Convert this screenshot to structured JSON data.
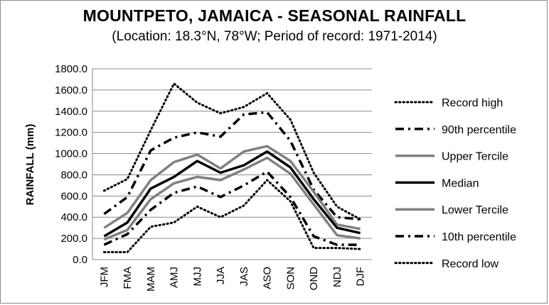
{
  "chart_data": {
    "type": "line",
    "title": "MOUNTPETO, JAMAICA - SEASONAL RAINFALL",
    "subtitle": "(Location: 18.3°N, 78°W; Period of record: 1971-2014)",
    "xlabel": "",
    "ylabel": "RAINFALL (mm)",
    "ylim": [
      0,
      1800
    ],
    "ytick_step": 200,
    "ytick_format": "0.0",
    "grid": "horizontal",
    "legend": "right",
    "categories": [
      "JFM",
      "FMA",
      "MAM",
      "AMJ",
      "MJJ",
      "JJA",
      "JAS",
      "ASO",
      "SON",
      "OND",
      "NDJ",
      "DJF"
    ],
    "series": [
      {
        "name": "Record high",
        "style": "dotted",
        "color": "#000000",
        "values": [
          650,
          760,
          1220,
          1660,
          1480,
          1380,
          1440,
          1570,
          1320,
          820,
          500,
          380
        ]
      },
      {
        "name": "90th percentile",
        "style": "dashdot",
        "color": "#000000",
        "values": [
          430,
          590,
          1030,
          1150,
          1200,
          1160,
          1370,
          1390,
          1120,
          660,
          400,
          380
        ]
      },
      {
        "name": "Upper Tercile",
        "style": "solid-gray",
        "color": "#808080",
        "values": [
          300,
          440,
          750,
          920,
          990,
          860,
          1020,
          1070,
          930,
          640,
          330,
          290
        ]
      },
      {
        "name": "Median",
        "style": "solid",
        "color": "#000000",
        "values": [
          220,
          350,
          670,
          780,
          930,
          820,
          890,
          1020,
          870,
          570,
          300,
          250
        ]
      },
      {
        "name": "Lower Tercile",
        "style": "solid-gray",
        "color": "#808080",
        "values": [
          190,
          280,
          570,
          720,
          780,
          750,
          850,
          960,
          810,
          520,
          230,
          200
        ]
      },
      {
        "name": "10th percentile",
        "style": "dashdot",
        "color": "#000000",
        "values": [
          140,
          240,
          470,
          630,
          690,
          590,
          700,
          830,
          590,
          220,
          140,
          140
        ]
      },
      {
        "name": "Record low",
        "style": "dotted",
        "color": "#000000",
        "values": [
          70,
          70,
          310,
          350,
          500,
          400,
          510,
          750,
          550,
          110,
          110,
          100
        ]
      }
    ]
  }
}
